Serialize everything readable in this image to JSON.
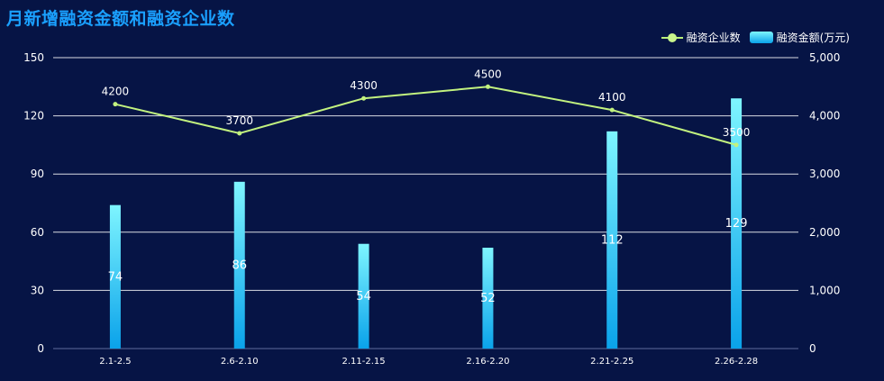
{
  "title": "月新增融资金额和融资企业数",
  "legend": {
    "line_label": "融资企业数",
    "bar_label": "融资金额(万元)"
  },
  "colors": {
    "background": "#061445",
    "title": "#1aa0ff",
    "line": "#c2f27f",
    "bar_top": "#7ef5ff",
    "bar_bottom": "#0aa2ea",
    "grid": "#ffffff",
    "text": "#ffffff"
  },
  "chart_data": {
    "type": "bar",
    "title": "月新增融资金额和融资企业数",
    "categories": [
      "2.1-2.5",
      "2.6-2.10",
      "2.11-2.15",
      "2.16-2.20",
      "2.21-2.25",
      "2.26-2.28"
    ],
    "series": [
      {
        "name": "融资金额(万元)",
        "type": "bar",
        "axis": "left",
        "values": [
          74,
          86,
          54,
          52,
          112,
          129
        ]
      },
      {
        "name": "融资企业数",
        "type": "line",
        "axis": "right",
        "values": [
          4200,
          3700,
          4300,
          4500,
          4100,
          3500
        ]
      }
    ],
    "y_left": {
      "ylim": [
        0,
        150
      ],
      "ticks": [
        "0",
        "30",
        "60",
        "90",
        "120",
        "150"
      ]
    },
    "y_right": {
      "ylim": [
        0,
        5000
      ],
      "ticks": [
        "0",
        "1,000",
        "2,000",
        "3,000",
        "4,000",
        "5,000"
      ]
    },
    "grid": true,
    "legend_position": "top-right"
  }
}
